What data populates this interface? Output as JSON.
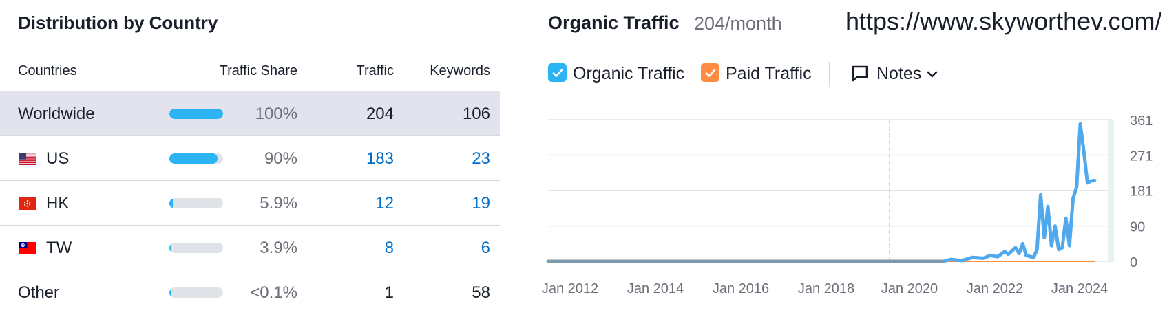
{
  "left_panel": {
    "title": "Distribution by Country",
    "columns": {
      "countries": "Countries",
      "traffic_share": "Traffic Share",
      "traffic": "Traffic",
      "keywords": "Keywords"
    },
    "rows": [
      {
        "country": "Worldwide",
        "flag": "",
        "share": "100%",
        "share_fraction": 1.0,
        "traffic": "204",
        "keywords": "106",
        "linked": false,
        "highlight": true
      },
      {
        "country": "US",
        "flag": "us-flag-icon",
        "share": "90%",
        "share_fraction": 0.9,
        "traffic": "183",
        "keywords": "23",
        "linked": true,
        "highlight": false
      },
      {
        "country": "HK",
        "flag": "hk-flag-icon",
        "share": "5.9%",
        "share_fraction": 0.059,
        "traffic": "12",
        "keywords": "19",
        "linked": true,
        "highlight": false
      },
      {
        "country": "TW",
        "flag": "tw-flag-icon",
        "share": "3.9%",
        "share_fraction": 0.039,
        "traffic": "8",
        "keywords": "6",
        "linked": true,
        "highlight": false
      },
      {
        "country": "Other",
        "flag": "",
        "share": "<0.1%",
        "share_fraction": 0.001,
        "traffic": "1",
        "keywords": "58",
        "linked": false,
        "highlight": false
      }
    ]
  },
  "right_panel": {
    "title": "Organic Traffic",
    "subtitle": "204/month",
    "url": "https://www.skyworthev.com/",
    "legend": [
      {
        "label": "Organic Traffic",
        "color": "#2bb3f3",
        "checked": true
      },
      {
        "label": "Paid Traffic",
        "color": "#ff8c43",
        "checked": true
      }
    ],
    "notes_label": "Notes"
  },
  "chart_data": {
    "type": "line",
    "x_tick_labels": [
      "Jan 2012",
      "Jan 2014",
      "Jan 2016",
      "Jan 2018",
      "Jan 2020",
      "Jan 2022",
      "Jan 2024"
    ],
    "x_range": [
      "2011-11",
      "2024-12"
    ],
    "y_ticks": [
      0,
      90,
      181,
      271,
      361
    ],
    "ylim": [
      0,
      361
    ],
    "y_axis_position": "right",
    "grid": true,
    "marker_line": "2019-10",
    "series": [
      {
        "name": "Organic Traffic",
        "color": "#4fa9ec",
        "points": [
          [
            "2011-11",
            0
          ],
          [
            "2021-01",
            0
          ],
          [
            "2021-03",
            5
          ],
          [
            "2021-06",
            2
          ],
          [
            "2021-09",
            10
          ],
          [
            "2021-12",
            8
          ],
          [
            "2022-02",
            15
          ],
          [
            "2022-04",
            12
          ],
          [
            "2022-06",
            25
          ],
          [
            "2022-07",
            18
          ],
          [
            "2022-09",
            35
          ],
          [
            "2022-10",
            20
          ],
          [
            "2022-11",
            45
          ],
          [
            "2022-12",
            15
          ],
          [
            "2023-02",
            10
          ],
          [
            "2023-03",
            30
          ],
          [
            "2023-04",
            170
          ],
          [
            "2023-05",
            60
          ],
          [
            "2023-06",
            140
          ],
          [
            "2023-07",
            40
          ],
          [
            "2023-08",
            90
          ],
          [
            "2023-09",
            30
          ],
          [
            "2023-10",
            35
          ],
          [
            "2023-11",
            110
          ],
          [
            "2023-12",
            40
          ],
          [
            "2024-01",
            160
          ],
          [
            "2024-02",
            190
          ],
          [
            "2024-03",
            350
          ],
          [
            "2024-04",
            280
          ],
          [
            "2024-05",
            200
          ],
          [
            "2024-06",
            205
          ],
          [
            "2024-07",
            206
          ]
        ]
      },
      {
        "name": "Paid Traffic",
        "color": "#ff8c43",
        "points": [
          [
            "2021-01",
            0
          ],
          [
            "2024-07",
            0
          ]
        ]
      }
    ]
  }
}
